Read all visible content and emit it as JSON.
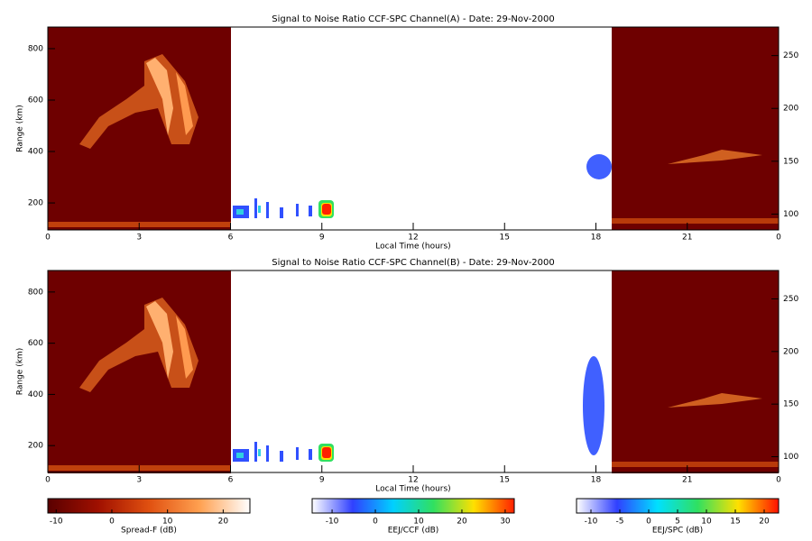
{
  "chart_data": [
    {
      "type": "heatmap",
      "title": "Signal to Noise Ratio CCF-SPC Channel(A) - Date: 29-Nov-2000",
      "xlabel": "Local Time (hours)",
      "ylabel": "Range (km)",
      "xlim": [
        0,
        24
      ],
      "xticks": [
        0,
        3,
        6,
        9,
        12,
        15,
        18,
        21,
        {
          "value": 24,
          "label": "0"
        }
      ],
      "ylim": [
        95,
        884
      ],
      "yticks": [
        200,
        400,
        600,
        800
      ],
      "y2lim": [
        85,
        277
      ],
      "y2ticks": [
        100,
        150,
        200,
        250
      ]
    },
    {
      "type": "heatmap",
      "title": "Signal to Noise Ratio CCF-SPC Channel(B) - Date: 29-Nov-2000",
      "xlabel": "Local Time (hours)",
      "ylabel": "Range (km)",
      "xlim": [
        0,
        24
      ],
      "xticks": [
        0,
        3,
        6,
        9,
        12,
        15,
        18,
        21,
        {
          "value": 24,
          "label": "0"
        }
      ],
      "ylim": [
        95,
        884
      ],
      "yticks": [
        200,
        400,
        600,
        800
      ],
      "y2lim": [
        85,
        277
      ],
      "y2ticks": [
        100,
        150,
        200,
        250
      ]
    }
  ],
  "colorbars": [
    {
      "label": "Spread-F (dB)",
      "lim": [
        -11.5,
        24.8
      ],
      "ticks": [
        -10,
        0,
        10,
        20
      ],
      "colors": [
        "#5a0000",
        "#a01000",
        "#e05010",
        "#ffa050",
        "#ffffff"
      ]
    },
    {
      "label": "EEJ/CCF (dB)",
      "lim": [
        -14.6,
        32.1
      ],
      "ticks": [
        -10,
        0,
        10,
        20,
        30
      ],
      "colors": [
        "#ffffff",
        "#3040ff",
        "#00d0ff",
        "#30e060",
        "#ffe000",
        "#ff2000"
      ]
    },
    {
      "label": "EEJ/SPC (dB)",
      "lim": [
        -12.5,
        22.5
      ],
      "ticks": [
        -10,
        -5,
        0,
        5,
        10,
        15,
        20
      ],
      "colors": [
        "#ffffff",
        "#3040ff",
        "#00e0ff",
        "#30e060",
        "#ffe000",
        "#ff1000"
      ]
    }
  ]
}
